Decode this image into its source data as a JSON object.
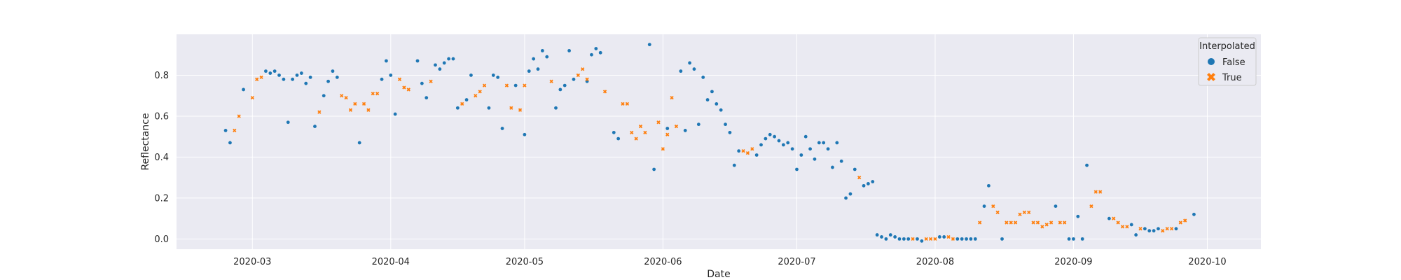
{
  "chart_data": {
    "type": "scatter",
    "xlabel": "Date",
    "ylabel": "Reflectance",
    "xlim": [
      "2020-02-13",
      "2020-10-13"
    ],
    "ylim": [
      -0.05,
      1.0
    ],
    "x_ticks": [
      "2020-03-01",
      "2020-04-01",
      "2020-05-01",
      "2020-06-01",
      "2020-07-01",
      "2020-08-01",
      "2020-09-01",
      "2020-10-01"
    ],
    "x_tick_labels": [
      "2020-03",
      "2020-04",
      "2020-05",
      "2020-06",
      "2020-07",
      "2020-08",
      "2020-09",
      "2020-10"
    ],
    "y_ticks": [
      0.0,
      0.2,
      0.4,
      0.6,
      0.8
    ],
    "y_tick_labels": [
      "0.0",
      "0.2",
      "0.4",
      "0.6",
      "0.8"
    ],
    "grid": true,
    "legend": {
      "title": "Interpolated",
      "placement": "top-right"
    },
    "series": [
      {
        "name": "False",
        "color": "#1f77b4",
        "marker": "circle",
        "points": [
          [
            "2020-02-24",
            0.53
          ],
          [
            "2020-02-25",
            0.47
          ],
          [
            "2020-02-28",
            0.73
          ],
          [
            "2020-03-04",
            0.82
          ],
          [
            "2020-03-05",
            0.81
          ],
          [
            "2020-03-06",
            0.82
          ],
          [
            "2020-03-07",
            0.8
          ],
          [
            "2020-03-08",
            0.78
          ],
          [
            "2020-03-09",
            0.57
          ],
          [
            "2020-03-10",
            0.78
          ],
          [
            "2020-03-11",
            0.8
          ],
          [
            "2020-03-12",
            0.81
          ],
          [
            "2020-03-13",
            0.76
          ],
          [
            "2020-03-14",
            0.79
          ],
          [
            "2020-03-15",
            0.55
          ],
          [
            "2020-03-17",
            0.7
          ],
          [
            "2020-03-18",
            0.77
          ],
          [
            "2020-03-19",
            0.82
          ],
          [
            "2020-03-20",
            0.79
          ],
          [
            "2020-03-25",
            0.47
          ],
          [
            "2020-03-30",
            0.78
          ],
          [
            "2020-03-31",
            0.87
          ],
          [
            "2020-04-01",
            0.8
          ],
          [
            "2020-04-02",
            0.61
          ],
          [
            "2020-04-07",
            0.87
          ],
          [
            "2020-04-08",
            0.76
          ],
          [
            "2020-04-09",
            0.69
          ],
          [
            "2020-04-11",
            0.85
          ],
          [
            "2020-04-12",
            0.83
          ],
          [
            "2020-04-13",
            0.86
          ],
          [
            "2020-04-14",
            0.88
          ],
          [
            "2020-04-15",
            0.88
          ],
          [
            "2020-04-16",
            0.64
          ],
          [
            "2020-04-18",
            0.68
          ],
          [
            "2020-04-19",
            0.8
          ],
          [
            "2020-04-23",
            0.64
          ],
          [
            "2020-04-24",
            0.8
          ],
          [
            "2020-04-25",
            0.79
          ],
          [
            "2020-04-26",
            0.54
          ],
          [
            "2020-04-29",
            0.75
          ],
          [
            "2020-05-01",
            0.51
          ],
          [
            "2020-05-02",
            0.82
          ],
          [
            "2020-05-03",
            0.88
          ],
          [
            "2020-05-04",
            0.83
          ],
          [
            "2020-05-05",
            0.92
          ],
          [
            "2020-05-06",
            0.89
          ],
          [
            "2020-05-08",
            0.64
          ],
          [
            "2020-05-09",
            0.73
          ],
          [
            "2020-05-10",
            0.75
          ],
          [
            "2020-05-11",
            0.92
          ],
          [
            "2020-05-12",
            0.78
          ],
          [
            "2020-05-15",
            0.77
          ],
          [
            "2020-05-16",
            0.9
          ],
          [
            "2020-05-17",
            0.93
          ],
          [
            "2020-05-18",
            0.91
          ],
          [
            "2020-05-21",
            0.52
          ],
          [
            "2020-05-22",
            0.49
          ],
          [
            "2020-05-29",
            0.95
          ],
          [
            "2020-05-30",
            0.34
          ],
          [
            "2020-06-02",
            0.54
          ],
          [
            "2020-06-05",
            0.82
          ],
          [
            "2020-06-06",
            0.53
          ],
          [
            "2020-06-07",
            0.86
          ],
          [
            "2020-06-08",
            0.83
          ],
          [
            "2020-06-09",
            0.56
          ],
          [
            "2020-06-10",
            0.79
          ],
          [
            "2020-06-11",
            0.68
          ],
          [
            "2020-06-12",
            0.72
          ],
          [
            "2020-06-13",
            0.66
          ],
          [
            "2020-06-14",
            0.63
          ],
          [
            "2020-06-15",
            0.56
          ],
          [
            "2020-06-16",
            0.52
          ],
          [
            "2020-06-17",
            0.36
          ],
          [
            "2020-06-18",
            0.43
          ],
          [
            "2020-06-22",
            0.41
          ],
          [
            "2020-06-23",
            0.46
          ],
          [
            "2020-06-24",
            0.49
          ],
          [
            "2020-06-25",
            0.51
          ],
          [
            "2020-06-26",
            0.5
          ],
          [
            "2020-06-27",
            0.48
          ],
          [
            "2020-06-28",
            0.46
          ],
          [
            "2020-06-29",
            0.47
          ],
          [
            "2020-06-30",
            0.44
          ],
          [
            "2020-07-01",
            0.34
          ],
          [
            "2020-07-02",
            0.41
          ],
          [
            "2020-07-03",
            0.5
          ],
          [
            "2020-07-04",
            0.44
          ],
          [
            "2020-07-05",
            0.39
          ],
          [
            "2020-07-06",
            0.47
          ],
          [
            "2020-07-07",
            0.47
          ],
          [
            "2020-07-08",
            0.44
          ],
          [
            "2020-07-09",
            0.35
          ],
          [
            "2020-07-10",
            0.47
          ],
          [
            "2020-07-11",
            0.38
          ],
          [
            "2020-07-12",
            0.2
          ],
          [
            "2020-07-13",
            0.22
          ],
          [
            "2020-07-14",
            0.34
          ],
          [
            "2020-07-16",
            0.26
          ],
          [
            "2020-07-17",
            0.27
          ],
          [
            "2020-07-18",
            0.28
          ],
          [
            "2020-07-19",
            0.02
          ],
          [
            "2020-07-20",
            0.01
          ],
          [
            "2020-07-21",
            0.0
          ],
          [
            "2020-07-22",
            0.02
          ],
          [
            "2020-07-23",
            0.01
          ],
          [
            "2020-07-24",
            0.0
          ],
          [
            "2020-07-25",
            0.0
          ],
          [
            "2020-07-26",
            0.0
          ],
          [
            "2020-07-28",
            0.0
          ],
          [
            "2020-07-29",
            -0.01
          ],
          [
            "2020-08-02",
            0.01
          ],
          [
            "2020-08-03",
            0.01
          ],
          [
            "2020-08-06",
            0.0
          ],
          [
            "2020-08-07",
            0.0
          ],
          [
            "2020-08-08",
            0.0
          ],
          [
            "2020-08-09",
            0.0
          ],
          [
            "2020-08-10",
            0.0
          ],
          [
            "2020-08-12",
            0.16
          ],
          [
            "2020-08-13",
            0.26
          ],
          [
            "2020-08-16",
            0.0
          ],
          [
            "2020-08-28",
            0.16
          ],
          [
            "2020-08-31",
            0.0
          ],
          [
            "2020-09-01",
            0.0
          ],
          [
            "2020-09-02",
            0.11
          ],
          [
            "2020-09-03",
            0.0
          ],
          [
            "2020-09-04",
            0.36
          ],
          [
            "2020-09-09",
            0.1
          ],
          [
            "2020-09-14",
            0.07
          ],
          [
            "2020-09-15",
            0.02
          ],
          [
            "2020-09-17",
            0.05
          ],
          [
            "2020-09-18",
            0.04
          ],
          [
            "2020-09-19",
            0.04
          ],
          [
            "2020-09-20",
            0.05
          ],
          [
            "2020-09-24",
            0.05
          ],
          [
            "2020-09-28",
            0.12
          ]
        ]
      },
      {
        "name": "True",
        "color": "#ff7f0e",
        "marker": "x",
        "points": [
          [
            "2020-02-26",
            0.53
          ],
          [
            "2020-02-27",
            0.6
          ],
          [
            "2020-03-01",
            0.69
          ],
          [
            "2020-03-02",
            0.78
          ],
          [
            "2020-03-03",
            0.79
          ],
          [
            "2020-03-16",
            0.62
          ],
          [
            "2020-03-21",
            0.7
          ],
          [
            "2020-03-22",
            0.69
          ],
          [
            "2020-03-23",
            0.63
          ],
          [
            "2020-03-24",
            0.66
          ],
          [
            "2020-03-26",
            0.66
          ],
          [
            "2020-03-27",
            0.63
          ],
          [
            "2020-03-28",
            0.71
          ],
          [
            "2020-03-29",
            0.71
          ],
          [
            "2020-04-03",
            0.78
          ],
          [
            "2020-04-04",
            0.74
          ],
          [
            "2020-04-05",
            0.73
          ],
          [
            "2020-04-10",
            0.77
          ],
          [
            "2020-04-17",
            0.66
          ],
          [
            "2020-04-20",
            0.7
          ],
          [
            "2020-04-21",
            0.72
          ],
          [
            "2020-04-22",
            0.75
          ],
          [
            "2020-04-27",
            0.75
          ],
          [
            "2020-04-28",
            0.64
          ],
          [
            "2020-04-30",
            0.63
          ],
          [
            "2020-05-01",
            0.75
          ],
          [
            "2020-05-07",
            0.77
          ],
          [
            "2020-05-13",
            0.8
          ],
          [
            "2020-05-14",
            0.83
          ],
          [
            "2020-05-15",
            0.78
          ],
          [
            "2020-05-19",
            0.72
          ],
          [
            "2020-05-23",
            0.66
          ],
          [
            "2020-05-24",
            0.66
          ],
          [
            "2020-05-25",
            0.52
          ],
          [
            "2020-05-26",
            0.49
          ],
          [
            "2020-05-27",
            0.55
          ],
          [
            "2020-05-28",
            0.52
          ],
          [
            "2020-05-31",
            0.57
          ],
          [
            "2020-06-01",
            0.44
          ],
          [
            "2020-06-02",
            0.51
          ],
          [
            "2020-06-03",
            0.69
          ],
          [
            "2020-06-04",
            0.55
          ],
          [
            "2020-06-19",
            0.43
          ],
          [
            "2020-06-20",
            0.42
          ],
          [
            "2020-06-21",
            0.44
          ],
          [
            "2020-07-15",
            0.3
          ],
          [
            "2020-07-27",
            0.0
          ],
          [
            "2020-07-30",
            0.0
          ],
          [
            "2020-07-31",
            0.0
          ],
          [
            "2020-08-01",
            0.0
          ],
          [
            "2020-08-04",
            0.01
          ],
          [
            "2020-08-05",
            0.0
          ],
          [
            "2020-08-11",
            0.08
          ],
          [
            "2020-08-14",
            0.16
          ],
          [
            "2020-08-15",
            0.13
          ],
          [
            "2020-08-17",
            0.08
          ],
          [
            "2020-08-18",
            0.08
          ],
          [
            "2020-08-19",
            0.08
          ],
          [
            "2020-08-20",
            0.12
          ],
          [
            "2020-08-21",
            0.13
          ],
          [
            "2020-08-22",
            0.13
          ],
          [
            "2020-08-23",
            0.08
          ],
          [
            "2020-08-24",
            0.08
          ],
          [
            "2020-08-25",
            0.06
          ],
          [
            "2020-08-26",
            0.07
          ],
          [
            "2020-08-27",
            0.08
          ],
          [
            "2020-08-29",
            0.08
          ],
          [
            "2020-08-30",
            0.08
          ],
          [
            "2020-09-05",
            0.16
          ],
          [
            "2020-09-06",
            0.23
          ],
          [
            "2020-09-07",
            0.23
          ],
          [
            "2020-09-10",
            0.1
          ],
          [
            "2020-09-11",
            0.08
          ],
          [
            "2020-09-12",
            0.06
          ],
          [
            "2020-09-13",
            0.06
          ],
          [
            "2020-09-16",
            0.05
          ],
          [
            "2020-09-21",
            0.04
          ],
          [
            "2020-09-22",
            0.05
          ],
          [
            "2020-09-23",
            0.05
          ],
          [
            "2020-09-25",
            0.08
          ],
          [
            "2020-09-26",
            0.09
          ]
        ]
      }
    ]
  }
}
